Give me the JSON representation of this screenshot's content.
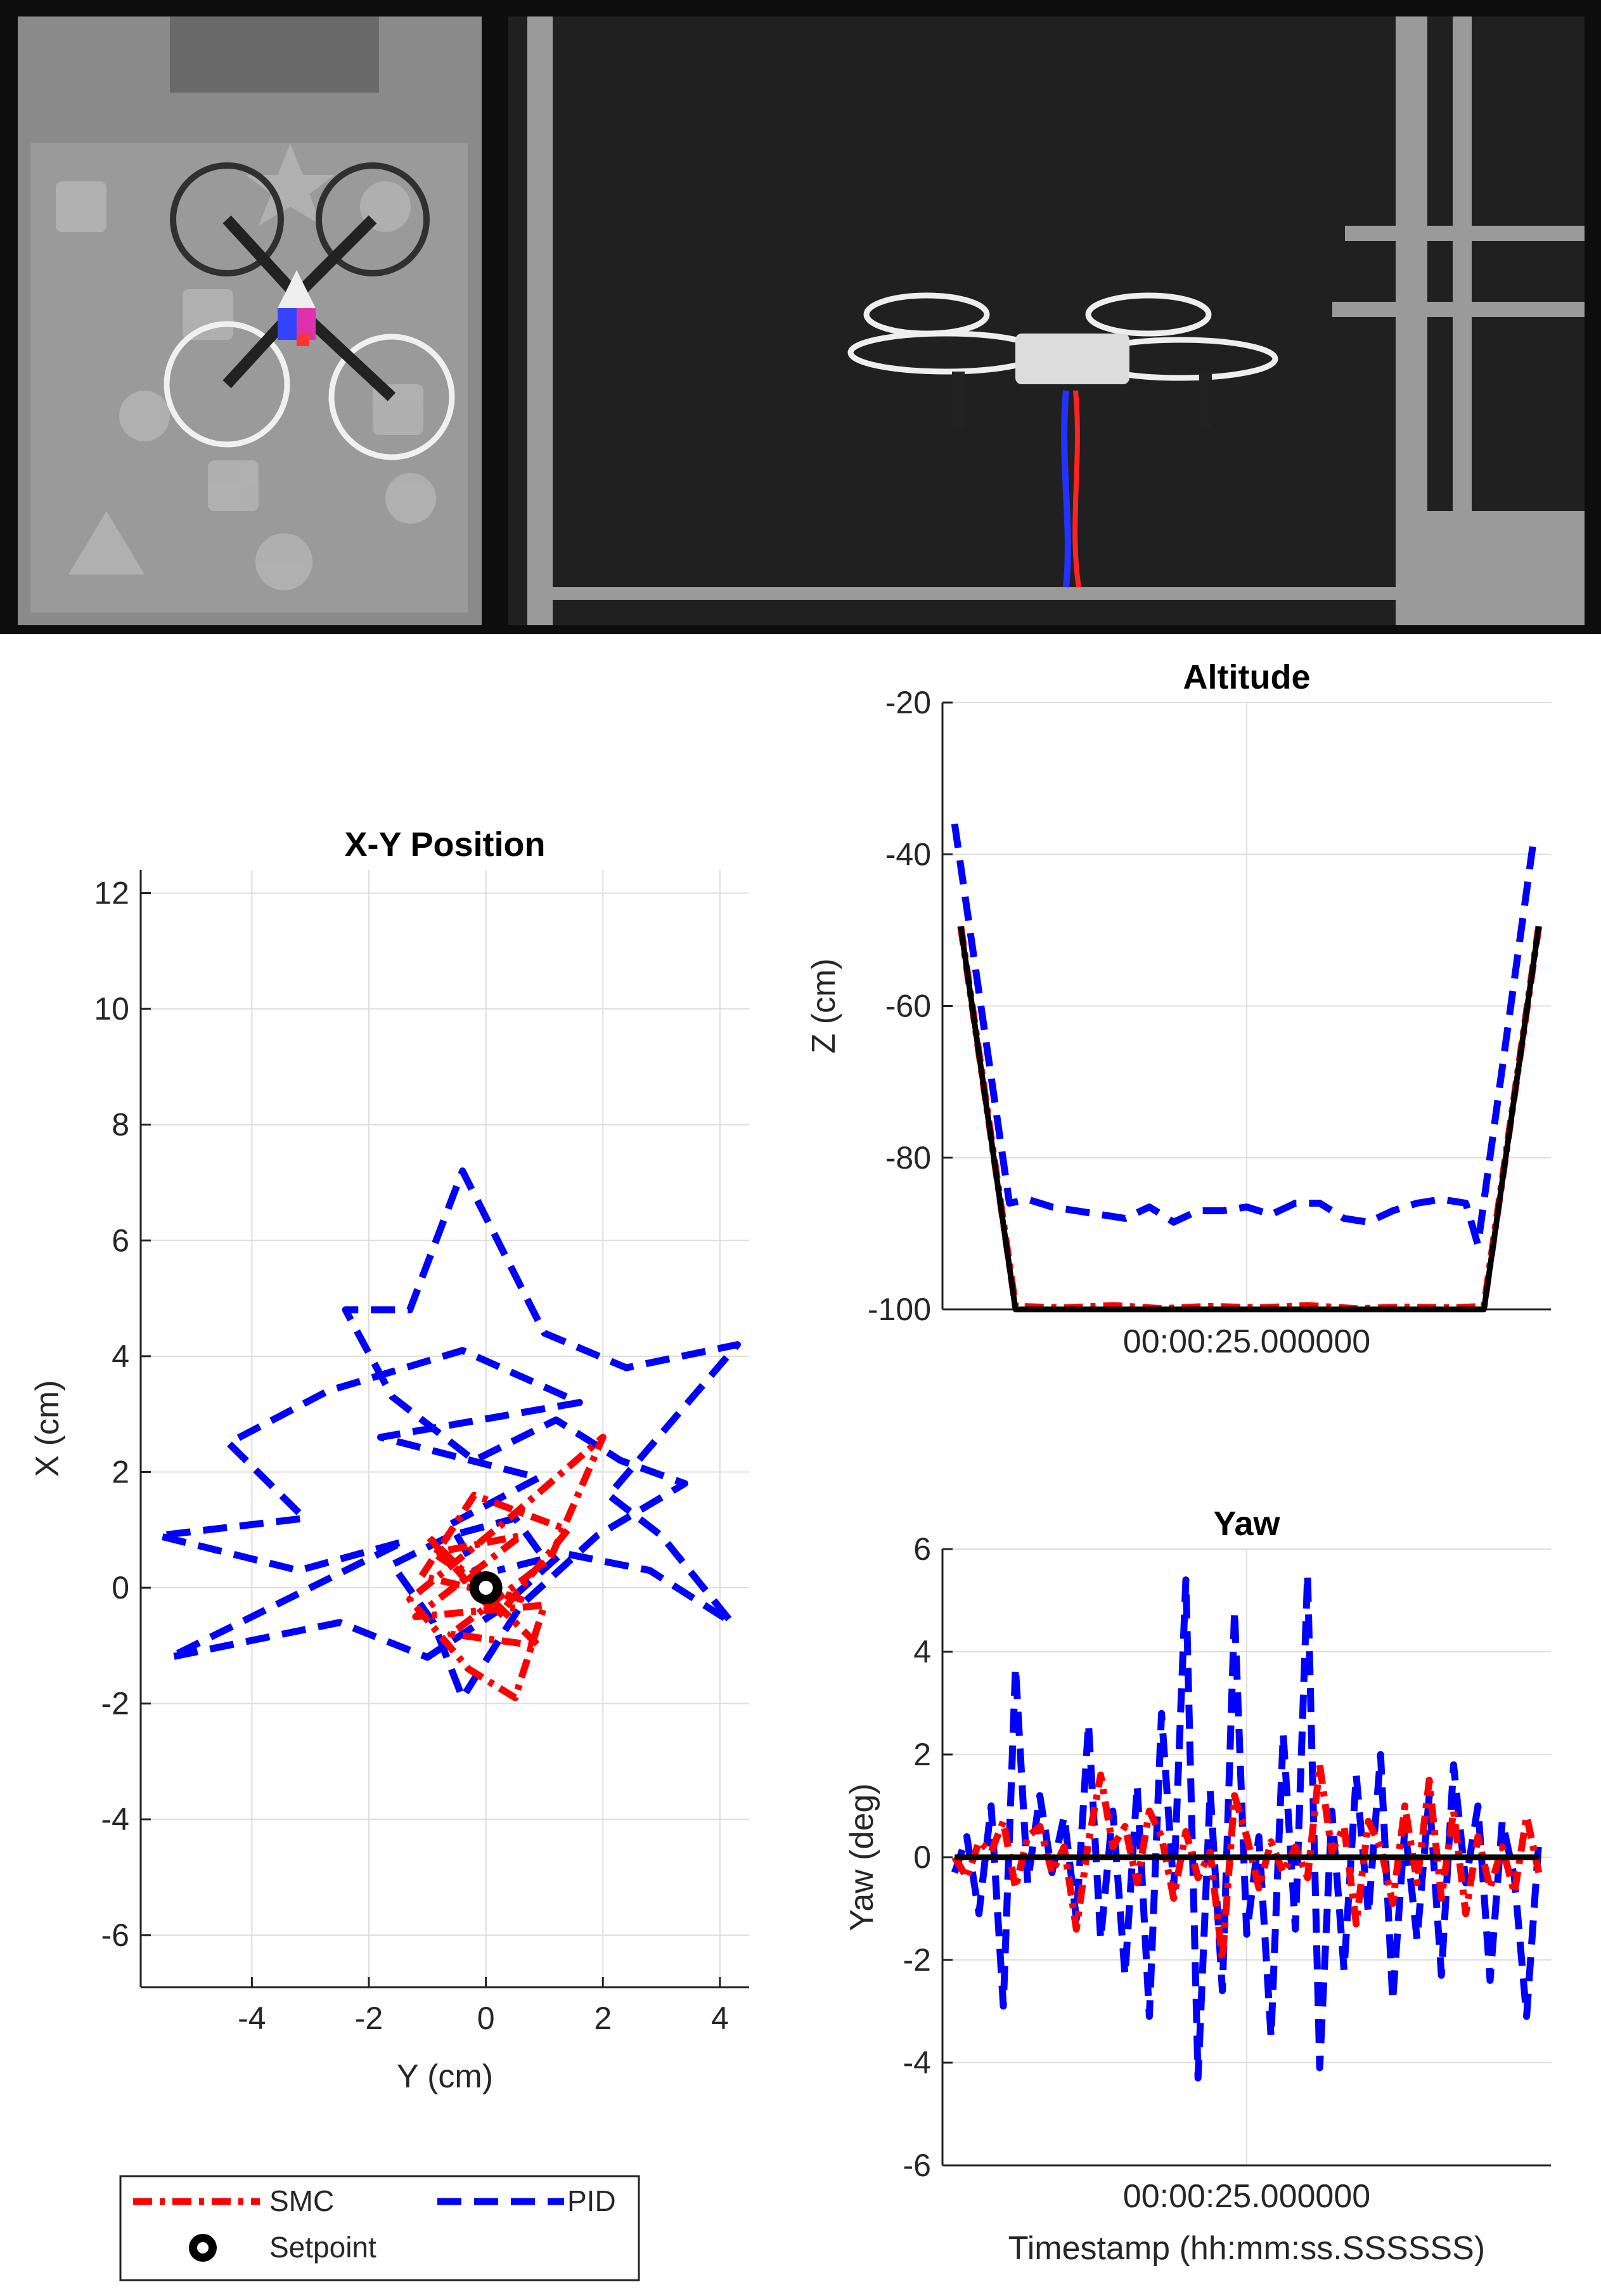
{
  "photos": {
    "top_view": "top-down camera view of quadrotor over foam mat",
    "side_view": "side camera view of quadrotor in flight cage"
  },
  "colors": {
    "smc": "#ff0000",
    "pid": "#0000ff",
    "setpoint": "#000000",
    "grid": "#dedede"
  },
  "chart_data": [
    {
      "id": "xy",
      "type": "line",
      "title": "X-Y Position",
      "xlabel": "Y (cm)",
      "ylabel": "X (cm)",
      "xlim": [
        -5.9,
        4.5
      ],
      "ylim": [
        -6.9,
        12.4
      ],
      "xticks": [
        -4,
        -2,
        0,
        2,
        4
      ],
      "yticks": [
        -6,
        -4,
        -2,
        0,
        2,
        4,
        6,
        8,
        10,
        12
      ],
      "grid": true,
      "series": [
        {
          "name": "PID",
          "style": "dashed",
          "points": [
            [
              0,
              0
            ],
            [
              -0.6,
              1.1
            ],
            [
              0.9,
              1.9
            ],
            [
              -1.8,
              2.6
            ],
            [
              1.6,
              3.2
            ],
            [
              -0.4,
              4.1
            ],
            [
              -2.7,
              3.4
            ],
            [
              -4.4,
              2.5
            ],
            [
              -3.1,
              1.2
            ],
            [
              -5.6,
              0.9
            ],
            [
              -3.2,
              0.3
            ],
            [
              -1.4,
              0.8
            ],
            [
              -5.4,
              -1.2
            ],
            [
              -2.5,
              -0.6
            ],
            [
              -1.0,
              -1.2
            ],
            [
              0.2,
              -0.4
            ],
            [
              1.3,
              0.6
            ],
            [
              2.8,
              0.3
            ],
            [
              4.2,
              -0.6
            ],
            [
              3.0,
              0.9
            ],
            [
              2.1,
              1.6
            ],
            [
              4.3,
              4.2
            ],
            [
              2.4,
              3.8
            ],
            [
              1.0,
              4.4
            ],
            [
              -0.4,
              7.2
            ],
            [
              -1.3,
              4.8
            ],
            [
              -2.4,
              4.8
            ],
            [
              -1.6,
              3.3
            ],
            [
              -0.2,
              2.2
            ],
            [
              1.2,
              2.9
            ],
            [
              2.3,
              2.2
            ],
            [
              3.4,
              1.8
            ],
            [
              1.9,
              0.9
            ],
            [
              0.6,
              -0.3
            ],
            [
              -0.4,
              -1.9
            ],
            [
              -0.9,
              -0.6
            ],
            [
              -1.6,
              0.4
            ],
            [
              -0.6,
              0.9
            ],
            [
              0.5,
              1.2
            ],
            [
              1.0,
              0.5
            ],
            [
              0.2,
              0.3
            ]
          ]
        },
        {
          "name": "SMC",
          "style": "dashdot",
          "points": [
            [
              0,
              0
            ],
            [
              -0.9,
              0.6
            ],
            [
              0.6,
              0.9
            ],
            [
              -1.2,
              -0.5
            ],
            [
              1.0,
              -0.3
            ],
            [
              0.5,
              -1.9
            ],
            [
              -0.3,
              -1.4
            ],
            [
              -1.3,
              -0.2
            ],
            [
              0.4,
              1.2
            ],
            [
              2.0,
              2.6
            ],
            [
              1.1,
              0.5
            ],
            [
              -0.6,
              -0.8
            ],
            [
              0.9,
              -1.0
            ],
            [
              -1.0,
              0.9
            ],
            [
              0.2,
              -0.5
            ],
            [
              1.4,
              1.0
            ],
            [
              -0.2,
              1.6
            ],
            [
              -1.1,
              0.2
            ],
            [
              0.6,
              -0.2
            ],
            [
              0,
              0
            ]
          ]
        },
        {
          "name": "Setpoint",
          "style": "marker",
          "points": [
            [
              0,
              0
            ]
          ]
        }
      ]
    },
    {
      "id": "altitude",
      "type": "line",
      "title": "Altitude",
      "xlabel": "00:00:25.000000",
      "ylabel": "Z (cm)",
      "xlim": [
        0,
        50
      ],
      "ylim": [
        -100,
        -20
      ],
      "yticks": [
        -100,
        -80,
        -60,
        -40,
        -20
      ],
      "grid": true,
      "series": [
        {
          "name": "Setpoint",
          "style": "solid",
          "x": [
            1.5,
            6.0,
            44.5,
            49.0
          ],
          "y": [
            -49.5,
            -100,
            -100,
            -49.5
          ]
        },
        {
          "name": "SMC",
          "style": "dashdot",
          "x": [
            1.5,
            6.0,
            10,
            14,
            18,
            22,
            26,
            30,
            34,
            38,
            42,
            44.5,
            49.0
          ],
          "y": [
            -49.5,
            -99.6,
            -99.8,
            -99.5,
            -99.9,
            -99.6,
            -99.8,
            -99.5,
            -99.9,
            -99.7,
            -99.8,
            -99.6,
            -49.5
          ]
        },
        {
          "name": "PID",
          "style": "dashed",
          "x": [
            1.0,
            5.5,
            7,
            9,
            11,
            13,
            15,
            17,
            19,
            21,
            23,
            25,
            27,
            29,
            31,
            33,
            35,
            37,
            39,
            41,
            43,
            44.0,
            48.5
          ],
          "y": [
            -36,
            -86,
            -85.5,
            -86.5,
            -87,
            -87.5,
            -88,
            -86.5,
            -88.5,
            -87,
            -87,
            -86.5,
            -87.5,
            -86,
            -86,
            -88,
            -88.5,
            -87,
            -86,
            -85.5,
            -86,
            -91.5,
            -39
          ]
        }
      ]
    },
    {
      "id": "yaw",
      "type": "line",
      "title": "Yaw",
      "xlabel": "00:00:25.000000",
      "timestamp_label": "Timestamp (hh:mm:ss.SSSSSS)",
      "ylabel": "Yaw (deg)",
      "xlim": [
        0,
        50
      ],
      "ylim": [
        -6,
        6
      ],
      "yticks": [
        -6,
        -4,
        -2,
        0,
        2,
        4,
        6
      ],
      "grid": true,
      "series": [
        {
          "name": "Setpoint",
          "style": "solid",
          "x": [
            1,
            49
          ],
          "y": [
            0,
            0
          ]
        },
        {
          "name": "SMC",
          "style": "dashdot",
          "x": [
            1,
            2,
            3,
            4,
            5,
            6,
            7,
            8,
            9,
            10,
            11,
            12,
            13,
            14,
            15,
            16,
            17,
            18,
            19,
            20,
            21,
            22,
            23,
            24,
            25,
            26,
            27,
            28,
            29,
            30,
            31,
            32,
            33,
            34,
            35,
            36,
            37,
            38,
            39,
            40,
            41,
            42,
            43,
            44,
            45,
            46,
            47,
            48,
            49
          ],
          "y": [
            0,
            -0.4,
            0.3,
            0.1,
            0.7,
            -0.6,
            0.4,
            0.6,
            -0.3,
            0.2,
            -1.4,
            0.3,
            1.6,
            0.2,
            0.6,
            -0.5,
            0.9,
            0.4,
            -0.8,
            0.5,
            -0.4,
            0.1,
            -2.0,
            1.2,
            0.4,
            -0.6,
            0.3,
            -0.3,
            0.2,
            -0.4,
            1.8,
            0.1,
            0.6,
            -1.3,
            0.7,
            0.2,
            -0.9,
            1.0,
            -0.5,
            1.5,
            -0.8,
            0.9,
            -1.1,
            0.4,
            -0.6,
            0.2,
            -0.7,
            0.8,
            -0.3
          ]
        },
        {
          "name": "PID",
          "style": "dashed",
          "x": [
            1,
            2,
            3,
            4,
            5,
            6,
            7,
            8,
            9,
            10,
            11,
            12,
            13,
            14,
            15,
            16,
            17,
            18,
            19,
            20,
            21,
            22,
            23,
            24,
            25,
            26,
            27,
            28,
            29,
            30,
            31,
            32,
            33,
            34,
            35,
            36,
            37,
            38,
            39,
            40,
            41,
            42,
            43,
            44,
            45,
            46,
            47,
            48,
            49
          ],
          "y": [
            -0.3,
            0.4,
            -1.1,
            1.0,
            -2.9,
            3.7,
            -0.5,
            1.2,
            -0.3,
            0.8,
            -1.2,
            2.6,
            -1.6,
            0.9,
            -2.3,
            1.4,
            -3.1,
            2.8,
            -0.6,
            5.4,
            -4.3,
            1.3,
            -2.6,
            4.8,
            -1.5,
            0.4,
            -3.5,
            2.4,
            -1.4,
            5.5,
            -4.1,
            0.9,
            -2.2,
            1.6,
            -1.1,
            2.0,
            -2.8,
            0.6,
            -1.6,
            1.2,
            -2.3,
            1.8,
            -0.5,
            1.0,
            -2.4,
            0.7,
            -0.4,
            -3.1,
            0.3
          ]
        }
      ]
    }
  ],
  "legend": {
    "entries": [
      {
        "label": "SMC",
        "style": "dashdot",
        "color": "#ff0000"
      },
      {
        "label": "PID",
        "style": "dashed",
        "color": "#0000ff"
      },
      {
        "label": "Setpoint",
        "style": "marker",
        "color": "#000000"
      }
    ]
  }
}
